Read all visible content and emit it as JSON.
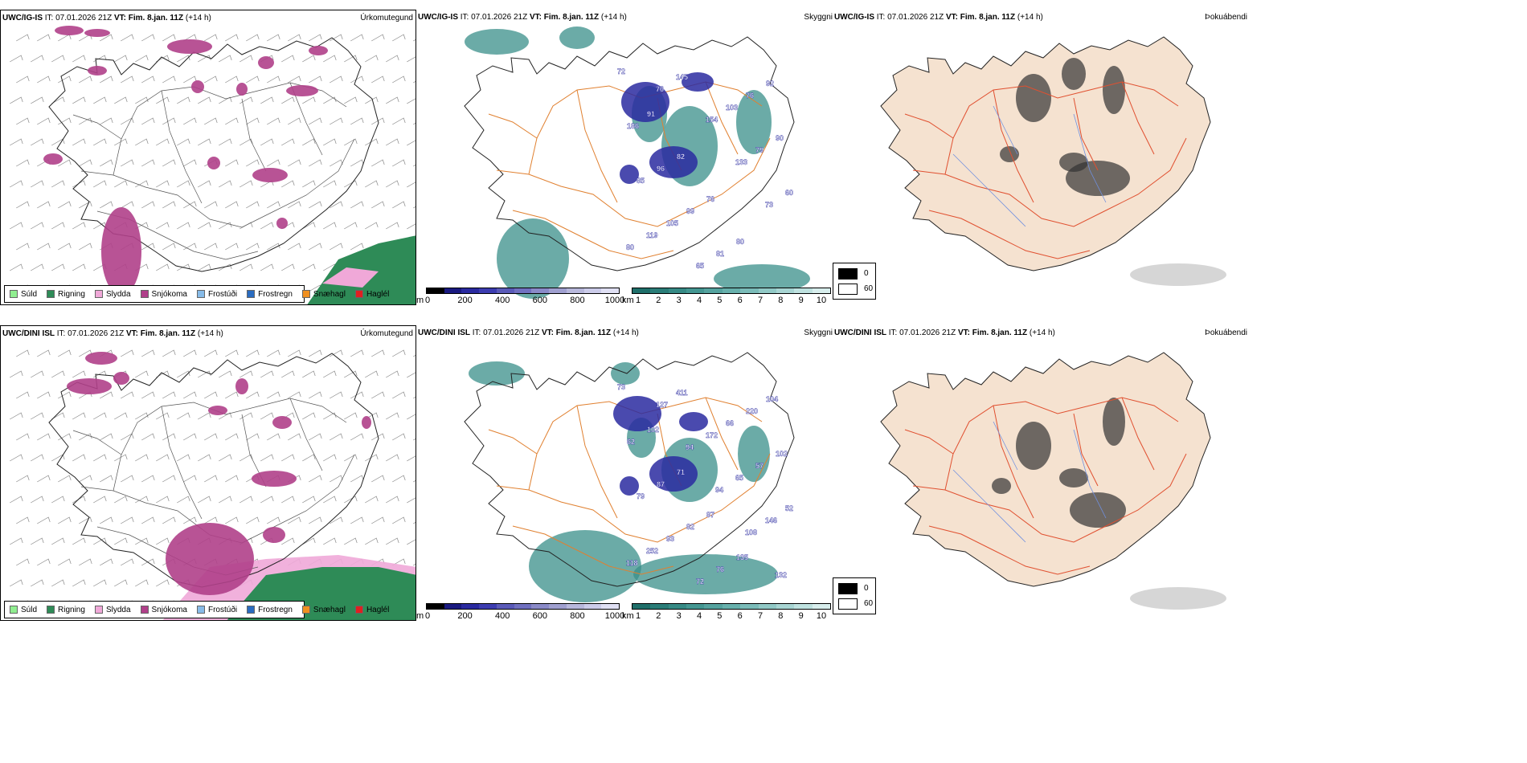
{
  "panels": {
    "top_precip": {
      "title_model": "UWC/IG-IS",
      "title_it": " IT: 07.01.2026 21Z ",
      "title_vt_label": "VT:",
      "title_vt": " Fim. 8.jan. 11Z",
      "title_lead": " (+14 h)",
      "right_label": "Úrkomutegund"
    },
    "top_visibility": {
      "title_model": "UWC/IG-IS",
      "title_it": " IT: 07.01.2026 21Z ",
      "title_vt_label": "VT:",
      "title_vt": " Fim. 8.jan. 11Z",
      "title_lead": " (+14 h)",
      "right_label": "Skyggni"
    },
    "top_fog": {
      "title_model": "UWC/IG-IS",
      "title_it": " IT: 07.01.2026 21Z ",
      "title_vt_label": "VT:",
      "title_vt": " Fim. 8.jan. 11Z",
      "title_lead": " (+14 h)",
      "right_label": "Þokuábendi"
    },
    "bottom_precip": {
      "title_model": "UWC/DINI ISL",
      "title_it": " IT: 07.01.2026 21Z ",
      "title_vt_label": "VT:",
      "title_vt": " Fim. 8.jan. 11Z",
      "title_lead": " (+14 h)",
      "right_label": "Úrkomutegund"
    },
    "bottom_visibility": {
      "title_model": "UWC/DINI ISL",
      "title_it": " IT: 07.01.2026 21Z ",
      "title_vt_label": "VT:",
      "title_vt": " Fim. 8.jan. 11Z",
      "title_lead": " (+14 h)",
      "right_label": "Skyggni"
    },
    "bottom_fog": {
      "title_model": "UWC/DINI ISL",
      "title_it": " IT: 07.01.2026 21Z ",
      "title_vt_label": "VT:",
      "title_vt": " Fim. 8.jan. 11Z",
      "title_lead": " (+14 h)",
      "right_label": "Þokuábendi"
    }
  },
  "precip_legend": [
    {
      "label": "Súld",
      "color": "#90ee90"
    },
    {
      "label": "Rigning",
      "color": "#2e8b57"
    },
    {
      "label": "Slydda",
      "color": "#f0a8d8"
    },
    {
      "label": "Snjókoma",
      "color": "#b0408a"
    },
    {
      "label": "Frostúði",
      "color": "#87bbe8"
    },
    {
      "label": "Frostregn",
      "color": "#2a6cc0"
    },
    {
      "label": "Snæhagl",
      "color": "#f09020"
    },
    {
      "label": "Haglél",
      "color": "#e02020"
    }
  ],
  "ceiling_bar": {
    "unit": "m",
    "ticks": [
      "0",
      "200",
      "400",
      "600",
      "800",
      "1000"
    ],
    "colors": [
      "#000000",
      "#1a1a80",
      "#2a2aa0",
      "#3c3cb0",
      "#5a5ab8",
      "#7070c0",
      "#8a8ac8",
      "#a0a0d0",
      "#b8b8dc",
      "#ccccea",
      "#e0e0f4"
    ]
  },
  "visibility_bar": {
    "unit": "km",
    "ticks": [
      "1",
      "2",
      "3",
      "4",
      "5",
      "6",
      "7",
      "8",
      "9",
      "10"
    ],
    "colors": [
      "#1f6f6a",
      "#2a7d78",
      "#368a85",
      "#449792",
      "#55a39f",
      "#67b0ac",
      "#7bbcb9",
      "#91c9c6",
      "#a8d5d3",
      "#bfe2e0",
      "#d8eeed"
    ]
  },
  "fog_legend": {
    "black_label": "0",
    "white_label": "60"
  },
  "top_vis_labels": [
    "72",
    "91",
    "82",
    "76",
    "80",
    "92",
    "186",
    "96",
    "99",
    "81",
    "76",
    "90",
    "85",
    "105",
    "65",
    "103",
    "79",
    "60",
    "119",
    "145",
    "154",
    "133",
    "73",
    "80",
    "76"
  ],
  "bottom_vis_labels": [
    "73",
    "102",
    "71",
    "87",
    "135",
    "104",
    "62",
    "87",
    "82",
    "76",
    "220",
    "102",
    "79",
    "93",
    "72",
    "66",
    "57",
    "52",
    "252",
    "411",
    "172",
    "65",
    "146",
    "118",
    "127",
    "94",
    "94",
    "108",
    "132"
  ],
  "colors": {
    "snow": "#b0408a",
    "rain": "#2e8b57",
    "sleet": "#f0a8d8",
    "road": "#e08030",
    "land_fog": "#f5e2d0",
    "road_red": "#e05030",
    "river": "#7090e0"
  }
}
